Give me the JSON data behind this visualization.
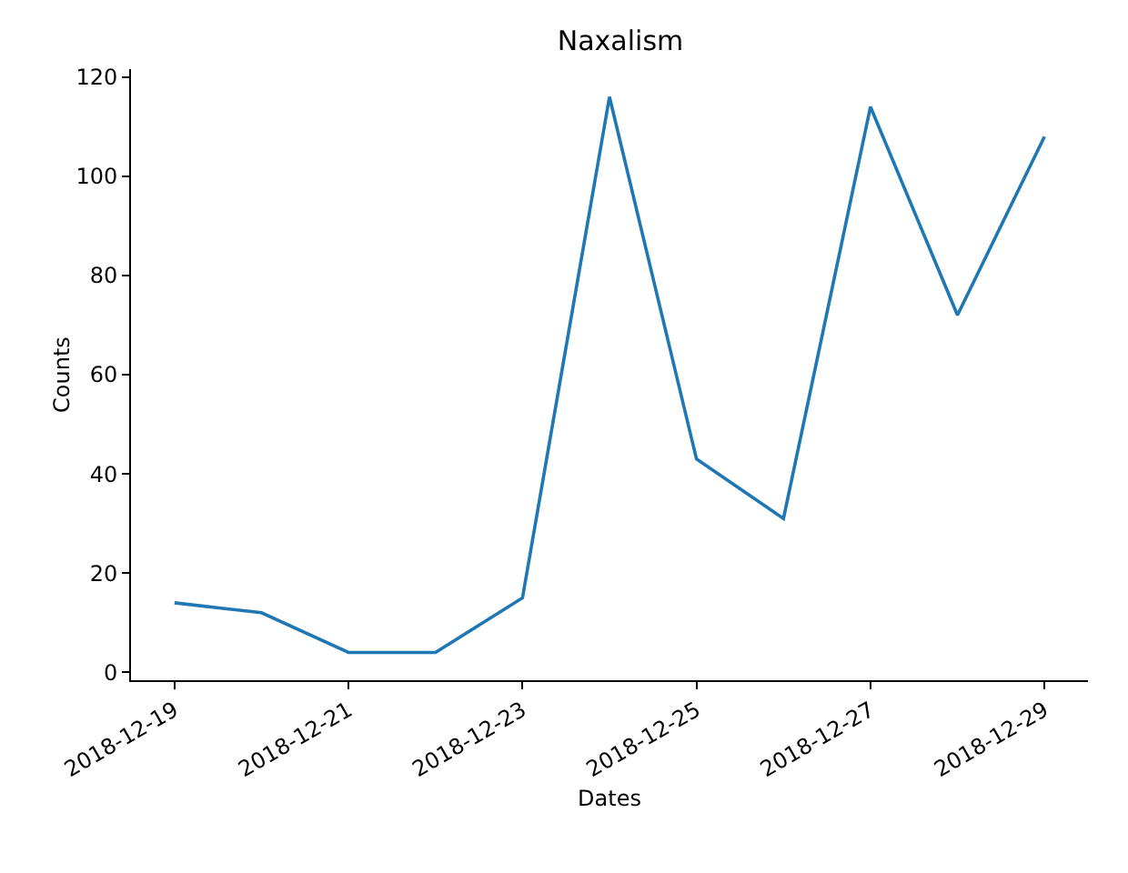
{
  "chart_data": {
    "type": "line",
    "title": "Naxalism",
    "xlabel": "Dates",
    "ylabel": "Counts",
    "x": [
      "2018-12-19",
      "2018-12-20",
      "2018-12-21",
      "2018-12-22",
      "2018-12-23",
      "2018-12-24",
      "2018-12-25",
      "2018-12-26",
      "2018-12-27",
      "2018-12-28",
      "2018-12-29"
    ],
    "series": [
      {
        "color": "#1f77b4",
        "values": [
          14,
          12,
          4,
          4,
          15,
          116,
          43,
          31,
          114,
          72,
          108
        ]
      }
    ],
    "xlim": [
      "2018-12-18T12:00",
      "2018-12-29T12:00"
    ],
    "xticks": [
      "2018-12-19",
      "2018-12-21",
      "2018-12-23",
      "2018-12-25",
      "2018-12-27",
      "2018-12-29"
    ],
    "ylim": [
      -1.6,
      121.6
    ],
    "yticks": [
      0,
      20,
      40,
      60,
      80,
      100,
      120
    ],
    "grid": false,
    "marker": "none",
    "line_style": "solid"
  }
}
